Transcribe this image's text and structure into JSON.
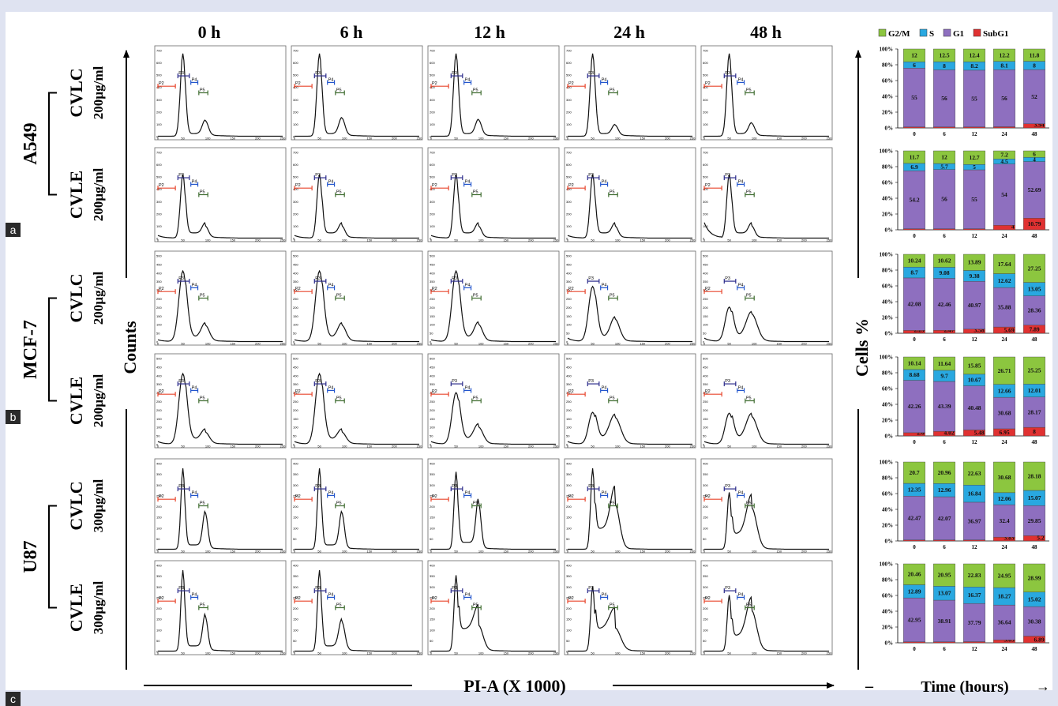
{
  "time_headers": [
    "0 h",
    "6 h",
    "12 h",
    "24 h",
    "48 h"
  ],
  "cell_lines": [
    {
      "name": "A549",
      "panel": "a",
      "rows": [
        {
          "extract": "CVLC",
          "dose": "200µg/ml"
        },
        {
          "extract": "CVLE",
          "dose": "200µg/ml"
        }
      ]
    },
    {
      "name": "MCF-7",
      "panel": "b",
      "rows": [
        {
          "extract": "CVLC",
          "dose": "200µg/ml"
        },
        {
          "extract": "CVLE",
          "dose": "200µg/ml"
        }
      ]
    },
    {
      "name": "U87",
      "panel": "c",
      "rows": [
        {
          "extract": "CVLC",
          "dose": "300µg/ml"
        },
        {
          "extract": "CVLE",
          "dose": "300µg/ml"
        }
      ]
    }
  ],
  "axis_labels": {
    "counts": "Counts",
    "pi": "PI-A (X 1000)",
    "cells": "Cells %",
    "time": "Time (hours)"
  },
  "gate_labels": [
    "P2",
    "P3",
    "P4",
    "P5"
  ],
  "colors": {
    "G2/M": "#8cc63f",
    "S": "#29a8e0",
    "G1": "#8e6fbf",
    "SubG1": "#e03131",
    "gate_P2": "#e8452c",
    "gate_P3": "#2a2a8a",
    "gate_P4": "#2255cc",
    "gate_P5": "#3d6b2e",
    "background": "#dfe3f1"
  },
  "chart_data": [
    {
      "type": "histogram",
      "description_of_axes": "Flow cytometry DNA content histograms",
      "xlabel": "PI-A (X 1000)",
      "ylabel": "Counts",
      "x_ticks": [
        0,
        50,
        100,
        150,
        200,
        250
      ],
      "y_ticks_by_cell_line": {
        "A549": [
          0,
          100,
          200,
          300,
          400,
          500,
          600,
          700
        ],
        "MCF-7": [
          0,
          50,
          100,
          150,
          200,
          250,
          300,
          350,
          400,
          450,
          500
        ],
        "U87": [
          0,
          50,
          100,
          150,
          200,
          250,
          300,
          350,
          400
        ]
      },
      "columns": [
        "0 h",
        "6 h",
        "12 h",
        "24 h",
        "48 h"
      ]
    },
    {
      "type": "bar",
      "stacked": true,
      "xlabel": "Time (hours)",
      "ylabel": "Cells %",
      "categories": [
        "0",
        "6",
        "12",
        "24",
        "48"
      ],
      "y_ticks": [
        "0%",
        "20%",
        "40%",
        "60%",
        "80%",
        "100%"
      ],
      "legend": [
        "G2/M",
        "S",
        "G1",
        "SubG1"
      ],
      "legend_position": "top",
      "panels": [
        {
          "row": "A549 CVLC",
          "SubG1": [
            0.97,
            0.97,
            1,
            1.16,
            3.94
          ],
          "G1": [
            55,
            56,
            55,
            56,
            52
          ],
          "S": [
            6,
            8,
            8.2,
            8.1,
            8
          ],
          "G2/M": [
            12,
            12.5,
            12.4,
            12.2,
            11.8
          ]
        },
        {
          "row": "A549 CVLE",
          "SubG1": [
            0.99,
            1,
            1,
            4,
            10.79
          ],
          "G1": [
            54.2,
            56,
            55,
            54,
            52.69
          ],
          "S": [
            6.9,
            5.7,
            5,
            4.5,
            4
          ],
          "G2/M": [
            11.7,
            12,
            12.7,
            7.2,
            6
          ]
        },
        {
          "row": "MCF-7 CVLC",
          "SubG1": [
            2.29,
            2.47,
            3.58,
            5.69,
            7.89
          ],
          "G1": [
            42.08,
            42.46,
            40.97,
            35.88,
            28.36
          ],
          "S": [
            8.7,
            9.08,
            9.38,
            12.62,
            13.05
          ],
          "G2/M": [
            10.24,
            10.62,
            13.89,
            17.64,
            27.25
          ]
        },
        {
          "row": "MCF-7 CVLE",
          "SubG1": [
            2.6,
            4.02,
            5.48,
            6.95,
            8
          ],
          "G1": [
            42.26,
            43.39,
            40.48,
            30.68,
            28.17
          ],
          "S": [
            8.68,
            9.7,
            10.67,
            12.66,
            12.01
          ],
          "G2/M": [
            10.14,
            11.64,
            15.85,
            26.71,
            25.25
          ]
        },
        {
          "row": "U87 CVLC",
          "SubG1": [
            1,
            1.03,
            1.06,
            3.83,
            5.2
          ],
          "G1": [
            42.47,
            42.07,
            36.97,
            32.4,
            29.85
          ],
          "S": [
            12.35,
            12.96,
            16.84,
            12.06,
            15.07
          ],
          "G2/M": [
            20.7,
            20.96,
            22.63,
            30.68,
            28.18
          ]
        },
        {
          "row": "U87 CVLE",
          "SubG1": [
            1.01,
            0.98,
            1.15,
            3.03,
            6.89
          ],
          "G1": [
            42.95,
            38.91,
            37.79,
            36.64,
            30.38
          ],
          "S": [
            12.89,
            13.07,
            16.37,
            18.27,
            15.02
          ],
          "G2/M": [
            20.46,
            20.95,
            22.83,
            24.95,
            28.99
          ]
        }
      ]
    }
  ]
}
